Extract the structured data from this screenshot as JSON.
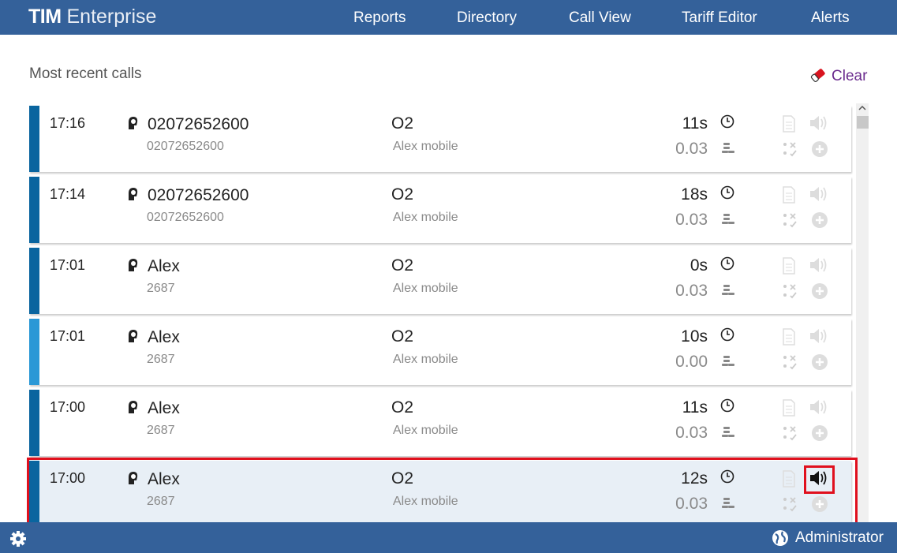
{
  "header": {
    "logo_bold": "TIM",
    "logo_rest": "Enterprise",
    "nav": [
      "Reports",
      "Directory",
      "Call View",
      "Tariff Editor",
      "Alerts"
    ]
  },
  "page": {
    "title": "Most recent calls",
    "clear": "Clear"
  },
  "calls": [
    {
      "time": "17:16",
      "name": "02072652600",
      "number": "02072652600",
      "carrier": "O2",
      "line": "Alex mobile",
      "duration": "11s",
      "cost": "0.03"
    },
    {
      "time": "17:14",
      "name": "02072652600",
      "number": "02072652600",
      "carrier": "O2",
      "line": "Alex mobile",
      "duration": "18s",
      "cost": "0.03"
    },
    {
      "time": "17:01",
      "name": "Alex",
      "number": "2687",
      "carrier": "O2",
      "line": "Alex mobile",
      "duration": "0s",
      "cost": "0.03"
    },
    {
      "time": "17:01",
      "name": "Alex",
      "number": "2687",
      "carrier": "O2",
      "line": "Alex mobile",
      "duration": "10s",
      "cost": "0.00"
    },
    {
      "time": "17:00",
      "name": "Alex",
      "number": "2687",
      "carrier": "O2",
      "line": "Alex mobile",
      "duration": "11s",
      "cost": "0.03"
    },
    {
      "time": "17:00",
      "name": "Alex",
      "number": "2687",
      "carrier": "O2",
      "line": "Alex mobile",
      "duration": "12s",
      "cost": "0.03"
    }
  ],
  "footer": {
    "user": "Administrator"
  }
}
